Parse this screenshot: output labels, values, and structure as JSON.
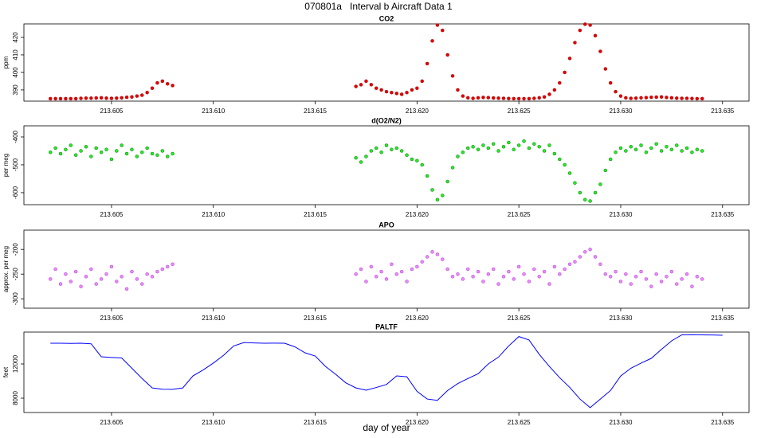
{
  "title": "070801a   Interval b Aircraft Data 1",
  "chart_data": [
    {
      "type": "scatter",
      "title": "CO2",
      "ylabel": "ppm",
      "color": "#e00000",
      "stroke": "#b00000",
      "xlim": [
        213.6007,
        213.6363
      ],
      "ylim": [
        383.6,
        427.7
      ],
      "xticks": [
        213.605,
        {
          "value": 213.61,
          "label": "213.610"
        },
        213.615,
        {
          "value": 213.62,
          "label": "213.620"
        },
        213.625,
        {
          "value": 213.63,
          "label": "213.630"
        },
        213.635
      ],
      "yticks": [
        390,
        400,
        410,
        420
      ],
      "x": [
        213.602,
        213.60225,
        213.6025,
        213.60275,
        213.603,
        213.60325,
        213.6035,
        213.60375,
        213.604,
        213.60425,
        213.6045,
        213.60475,
        213.605,
        213.60525,
        213.6055,
        213.60575,
        213.606,
        213.60625,
        213.6065,
        213.60675,
        213.607,
        213.60725,
        213.6075,
        213.60775,
        213.608,
        213.617,
        213.61725,
        213.6175,
        213.61775,
        213.618,
        213.61825,
        213.6185,
        213.61875,
        213.619,
        213.61925,
        213.6195,
        213.61975,
        213.62,
        213.62025,
        213.6205,
        213.62075,
        213.621,
        213.62125,
        213.6215,
        213.62175,
        213.622,
        213.62225,
        213.6225,
        213.62275,
        213.623,
        213.62325,
        213.6235,
        213.62375,
        213.624,
        213.62425,
        213.6245,
        213.62475,
        213.625,
        213.62525,
        213.6255,
        213.62575,
        213.626,
        213.62625,
        213.6265,
        213.62675,
        213.627,
        213.62725,
        213.6275,
        213.62775,
        213.628,
        213.62825,
        213.6285,
        213.62875,
        213.629,
        213.62925,
        213.6295,
        213.62975,
        213.63,
        213.63025,
        213.6305,
        213.63075,
        213.631,
        213.63125,
        213.6315,
        213.63175,
        213.632,
        213.63225,
        213.6325,
        213.63275,
        213.633,
        213.63325,
        213.6335,
        213.63375,
        213.634
      ],
      "values": [
        385,
        385,
        385,
        385,
        385,
        385,
        385.2,
        385.3,
        385.3,
        385.4,
        385.5,
        385.3,
        385.2,
        385.3,
        385.5,
        385.8,
        386,
        386.5,
        387,
        388.5,
        391,
        394,
        395,
        393.5,
        392.5,
        392,
        393,
        395,
        393,
        391,
        390,
        389,
        388.5,
        388,
        387.5,
        388.5,
        390,
        391,
        395,
        405,
        418,
        427,
        424,
        410,
        398,
        390,
        386.5,
        385.5,
        385.2,
        385.5,
        385.7,
        385.6,
        385.4,
        385.3,
        385.2,
        385.1,
        385,
        385,
        385,
        385,
        385.2,
        385.5,
        386,
        387.5,
        390,
        394,
        400,
        408,
        417,
        424,
        427.5,
        427,
        421,
        412,
        402,
        394,
        389,
        386.5,
        385.5,
        385.2,
        385.3,
        385.5,
        385.6,
        385.8,
        385.9,
        386,
        385.7,
        385.5,
        385.3,
        385.2,
        385.2,
        385.1,
        385,
        385
      ]
    },
    {
      "type": "scatter",
      "title": "d(O2/N2)",
      "ylabel": "per meg",
      "color": "#22ee22",
      "stroke": "#117711",
      "xlim": [
        213.6007,
        213.6363
      ],
      "ylim": [
        -643,
        -360
      ],
      "xticks": [
        213.605,
        {
          "value": 213.61,
          "label": "213.610"
        },
        213.615,
        {
          "value": 213.62,
          "label": "213.620"
        },
        213.625,
        {
          "value": 213.63,
          "label": "213.630"
        },
        213.635
      ],
      "yticks": [
        -400,
        -500,
        -600
      ],
      "x": [
        213.602,
        213.60225,
        213.6025,
        213.60275,
        213.603,
        213.60325,
        213.6035,
        213.60375,
        213.604,
        213.60425,
        213.6045,
        213.60475,
        213.605,
        213.60525,
        213.6055,
        213.60575,
        213.606,
        213.60625,
        213.6065,
        213.60675,
        213.607,
        213.60725,
        213.6075,
        213.60775,
        213.608,
        213.617,
        213.61725,
        213.6175,
        213.61775,
        213.618,
        213.61825,
        213.6185,
        213.61875,
        213.619,
        213.61925,
        213.6195,
        213.61975,
        213.62,
        213.62025,
        213.6205,
        213.62075,
        213.621,
        213.62125,
        213.6215,
        213.62175,
        213.622,
        213.62225,
        213.6225,
        213.62275,
        213.623,
        213.62325,
        213.6235,
        213.62375,
        213.624,
        213.62425,
        213.6245,
        213.62475,
        213.625,
        213.62525,
        213.6255,
        213.62575,
        213.626,
        213.62625,
        213.6265,
        213.62675,
        213.627,
        213.62725,
        213.6275,
        213.62775,
        213.628,
        213.62825,
        213.6285,
        213.62875,
        213.629,
        213.62925,
        213.6295,
        213.62975,
        213.63,
        213.63025,
        213.6305,
        213.63075,
        213.631,
        213.63125,
        213.6315,
        213.63175,
        213.632,
        213.63225,
        213.6325,
        213.63275,
        213.633,
        213.63325,
        213.6335,
        213.63375,
        213.634
      ],
      "values": [
        -455,
        -440,
        -460,
        -445,
        -430,
        -465,
        -450,
        -435,
        -470,
        -440,
        -455,
        -445,
        -480,
        -450,
        -430,
        -460,
        -445,
        -470,
        -455,
        -440,
        -460,
        -465,
        -450,
        -470,
        -460,
        -475,
        -490,
        -470,
        -450,
        -440,
        -455,
        -430,
        -445,
        -440,
        -450,
        -465,
        -480,
        -485,
        -500,
        -540,
        -590,
        -625,
        -610,
        -560,
        -510,
        -470,
        -455,
        -440,
        -435,
        -445,
        -430,
        -440,
        -425,
        -450,
        -435,
        -420,
        -445,
        -430,
        -415,
        -440,
        -425,
        -435,
        -450,
        -430,
        -460,
        -480,
        -500,
        -530,
        -565,
        -600,
        -625,
        -630,
        -600,
        -570,
        -520,
        -480,
        -455,
        -440,
        -450,
        -435,
        -445,
        -430,
        -455,
        -440,
        -425,
        -450,
        -435,
        -445,
        -430,
        -450,
        -440,
        -455,
        -445,
        -450
      ]
    },
    {
      "type": "scatter",
      "title": "APO",
      "ylabel": "approx. per meg",
      "color": "#ee88ff",
      "stroke": "#aa44cc",
      "xlim": [
        213.6007,
        213.6363
      ],
      "ylim": [
        -319,
        -161
      ],
      "xticks": [
        213.605,
        {
          "value": 213.61,
          "label": "213.610"
        },
        213.615,
        {
          "value": 213.62,
          "label": "213.620"
        },
        213.625,
        {
          "value": 213.63,
          "label": "213.630"
        },
        213.635
      ],
      "yticks": [
        -200,
        -250,
        -300
      ],
      "x": [
        213.602,
        213.60225,
        213.6025,
        213.60275,
        213.603,
        213.60325,
        213.6035,
        213.60375,
        213.604,
        213.60425,
        213.6045,
        213.60475,
        213.605,
        213.60525,
        213.6055,
        213.60575,
        213.606,
        213.60625,
        213.6065,
        213.60675,
        213.607,
        213.60725,
        213.6075,
        213.60775,
        213.608,
        213.617,
        213.61725,
        213.6175,
        213.61775,
        213.618,
        213.61825,
        213.6185,
        213.61875,
        213.619,
        213.61925,
        213.6195,
        213.61975,
        213.62,
        213.62025,
        213.6205,
        213.62075,
        213.621,
        213.62125,
        213.6215,
        213.62175,
        213.622,
        213.62225,
        213.6225,
        213.62275,
        213.623,
        213.62325,
        213.6235,
        213.62375,
        213.624,
        213.62425,
        213.6245,
        213.62475,
        213.625,
        213.62525,
        213.6255,
        213.62575,
        213.626,
        213.62625,
        213.6265,
        213.62675,
        213.627,
        213.62725,
        213.6275,
        213.62775,
        213.628,
        213.62825,
        213.6285,
        213.62875,
        213.629,
        213.62925,
        213.6295,
        213.62975,
        213.63,
        213.63025,
        213.6305,
        213.63075,
        213.631,
        213.63125,
        213.6315,
        213.63175,
        213.632,
        213.63225,
        213.6325,
        213.63275,
        213.633,
        213.63325,
        213.6335,
        213.63375,
        213.634
      ],
      "values": [
        -260,
        -240,
        -270,
        -250,
        -265,
        -245,
        -275,
        -255,
        -240,
        -270,
        -260,
        -250,
        -235,
        -265,
        -255,
        -280,
        -245,
        -260,
        -270,
        -250,
        -255,
        -245,
        -240,
        -235,
        -230,
        -250,
        -240,
        -265,
        -235,
        -255,
        -245,
        -260,
        -230,
        -250,
        -245,
        -265,
        -240,
        -235,
        -225,
        -215,
        -205,
        -210,
        -220,
        -240,
        -255,
        -250,
        -260,
        -240,
        -255,
        -245,
        -265,
        -250,
        -240,
        -270,
        -255,
        -245,
        -260,
        -235,
        -250,
        -265,
        -240,
        -255,
        -245,
        -270,
        -235,
        -250,
        -240,
        -230,
        -225,
        -215,
        -205,
        -200,
        -215,
        -230,
        -250,
        -255,
        -245,
        -265,
        -250,
        -270,
        -255,
        -245,
        -260,
        -275,
        -250,
        -265,
        -255,
        -245,
        -270,
        -260,
        -250,
        -275,
        -255,
        -260
      ]
    },
    {
      "type": "line",
      "title": "PALTF",
      "ylabel": "feet",
      "xlabel": "day of year",
      "color": "#0000ff",
      "xlim": [
        213.6007,
        213.6363
      ],
      "ylim": [
        6326,
        15721
      ],
      "xticks": [
        213.605,
        {
          "value": 213.61,
          "label": "213.610"
        },
        213.615,
        {
          "value": 213.62,
          "label": "213.620"
        },
        213.625,
        {
          "value": 213.63,
          "label": "213.630"
        },
        213.635
      ],
      "yticks": [
        8000,
        12000
      ],
      "x": [
        213.602,
        213.6025,
        213.603,
        213.6035,
        213.604,
        213.6045,
        213.605,
        213.6055,
        213.606,
        213.6065,
        213.607,
        213.6075,
        213.608,
        213.6085,
        213.609,
        213.6095,
        213.61,
        213.6105,
        213.611,
        213.6115,
        213.612,
        213.6125,
        213.613,
        213.6135,
        213.614,
        213.6145,
        213.615,
        213.6155,
        213.616,
        213.6165,
        213.617,
        213.6175,
        213.618,
        213.6185,
        213.619,
        213.6195,
        213.62,
        213.6205,
        213.621,
        213.6215,
        213.622,
        213.6225,
        213.623,
        213.6235,
        213.624,
        213.6245,
        213.625,
        213.6255,
        213.626,
        213.6265,
        213.627,
        213.6275,
        213.628,
        213.6285,
        213.629,
        213.6295,
        213.63,
        213.6305,
        213.631,
        213.6315,
        213.632,
        213.6325,
        213.633,
        213.6335,
        213.634,
        213.6345,
        213.635
      ],
      "values": [
        14420,
        14420,
        14400,
        14420,
        14350,
        12840,
        12760,
        12700,
        11500,
        10300,
        9200,
        9050,
        9030,
        9200,
        10600,
        11300,
        12100,
        13000,
        14100,
        14500,
        14450,
        14420,
        14430,
        14420,
        14000,
        13300,
        12930,
        11720,
        10800,
        9800,
        9200,
        8930,
        9250,
        9600,
        10600,
        10500,
        8800,
        7900,
        7750,
        8900,
        9700,
        10300,
        10850,
        12000,
        12800,
        14100,
        15200,
        14800,
        13120,
        11700,
        10400,
        9250,
        7900,
        6900,
        7900,
        8900,
        10600,
        11500,
        12100,
        12650,
        13700,
        14700,
        15400,
        15420,
        15400,
        15380,
        15350
      ]
    }
  ]
}
